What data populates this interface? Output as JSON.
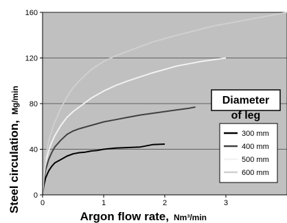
{
  "chart_data": {
    "type": "line",
    "title": "",
    "xlabel": "Argon flow rate,",
    "xlabel_unit": "Nm³/min",
    "ylabel": "Steel circulation,",
    "ylabel_unit": "Mg/min",
    "xlim": [
      0,
      4
    ],
    "ylim": [
      0,
      160
    ],
    "xticks": [
      0,
      1,
      2,
      3
    ],
    "yticks": [
      0,
      40,
      80,
      120,
      160
    ],
    "grid": "horizontal",
    "legend": {
      "title_line1": "Diameter",
      "title_line2": "of leg",
      "position": "right"
    },
    "series": [
      {
        "name": "300  mm",
        "color": "#000000",
        "x": [
          0,
          0.02,
          0.05,
          0.1,
          0.15,
          0.2,
          0.3,
          0.4,
          0.5,
          0.6,
          0.7,
          0.8,
          0.9,
          1.0,
          1.2,
          1.4,
          1.6,
          1.8,
          2.0
        ],
        "y": [
          0,
          8,
          15,
          21,
          25,
          28,
          31,
          34,
          36,
          37,
          37.5,
          38.5,
          39,
          40,
          41,
          41.5,
          42,
          44,
          44.5
        ]
      },
      {
        "name": "400  mm",
        "color": "#404040",
        "x": [
          0,
          0.02,
          0.05,
          0.1,
          0.15,
          0.2,
          0.3,
          0.4,
          0.5,
          0.6,
          0.8,
          1.0,
          1.2,
          1.4,
          1.6,
          1.8,
          2.0,
          2.2,
          2.4,
          2.5
        ],
        "y": [
          0,
          12,
          22,
          31,
          37,
          42,
          48,
          53,
          56,
          58,
          61,
          64,
          66,
          68,
          70,
          71.5,
          73,
          74.5,
          76,
          77
        ]
      },
      {
        "name": "500  mm",
        "color": "#f2f2f2",
        "x": [
          0,
          0.02,
          0.05,
          0.1,
          0.15,
          0.2,
          0.3,
          0.4,
          0.5,
          0.6,
          0.8,
          1.0,
          1.2,
          1.4,
          1.6,
          1.8,
          2.0,
          2.2,
          2.4,
          2.6,
          2.8,
          3.0
        ],
        "y": [
          0,
          15,
          28,
          39,
          46,
          52,
          61,
          68,
          73,
          77,
          85,
          91,
          96,
          100,
          103.5,
          107,
          110,
          113,
          115,
          117,
          118.5,
          120
        ]
      },
      {
        "name": "600  mm",
        "color": "#d0d0d0",
        "x": [
          0,
          0.02,
          0.05,
          0.1,
          0.15,
          0.2,
          0.3,
          0.4,
          0.5,
          0.6,
          0.8,
          1.0,
          1.2,
          1.5,
          1.8,
          2.0,
          2.2,
          2.5,
          2.8,
          3.0,
          3.2,
          3.5,
          3.8,
          4.0
        ],
        "y": [
          0,
          18,
          33,
          47,
          56,
          64,
          76,
          86,
          94,
          100,
          110,
          117,
          122,
          128,
          134,
          137,
          140,
          144,
          148,
          150,
          152,
          155,
          158,
          160
        ]
      }
    ]
  }
}
